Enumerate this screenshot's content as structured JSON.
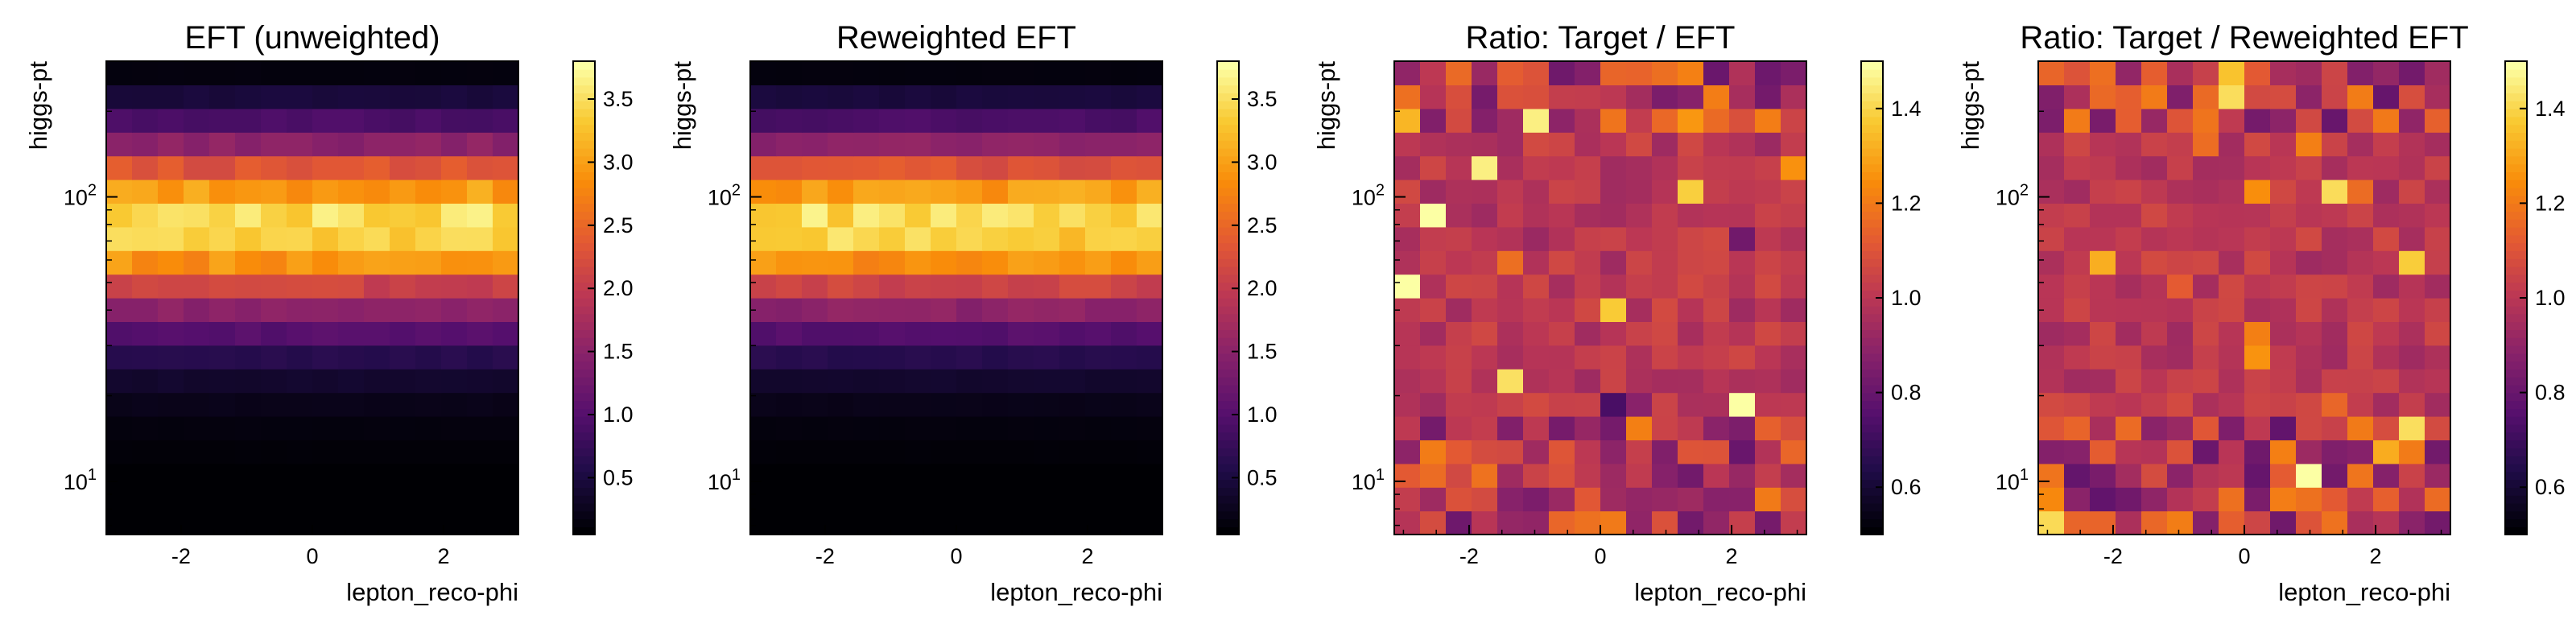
{
  "chart_data": [
    {
      "type": "heatmap",
      "title": "EFT (unweighted)",
      "xlabel": "lepton_reco-phi",
      "ylabel": "higgs-pt",
      "xlim": [
        -3.14,
        3.14
      ],
      "ylim": [
        6.5,
        300
      ],
      "yscale": "log",
      "x_ticks": [
        "-2",
        "0",
        "2"
      ],
      "y_ticks": [
        "10^2",
        "10^1"
      ],
      "colormap": "inferno",
      "colorbar": {
        "range": [
          0.05,
          3.8
        ],
        "ticks": [
          "0.5",
          "1.0",
          "1.5",
          "2.0",
          "2.5",
          "3.0",
          "3.5"
        ]
      },
      "grid": {
        "nx": 16,
        "ny": 20
      },
      "profile": [
        0.05,
        0.05,
        0.05,
        0.08,
        0.12,
        0.2,
        0.35,
        0.6,
        1.0,
        1.5,
        2.1,
        2.9,
        3.4,
        3.5,
        3.0,
        2.3,
        1.5,
        0.9,
        0.45,
        0.12
      ],
      "noise": 0.06
    },
    {
      "type": "heatmap",
      "title": "Reweighted EFT",
      "xlabel": "lepton_reco-phi",
      "ylabel": "higgs-pt",
      "xlim": [
        -3.14,
        3.14
      ],
      "ylim": [
        6.5,
        300
      ],
      "yscale": "log",
      "x_ticks": [
        "-2",
        "0",
        "2"
      ],
      "y_ticks": [
        "10^2",
        "10^1"
      ],
      "colormap": "inferno",
      "colorbar": {
        "range": [
          0.05,
          3.8
        ],
        "ticks": [
          "0.5",
          "1.0",
          "1.5",
          "2.0",
          "2.5",
          "3.0",
          "3.5"
        ]
      },
      "grid": {
        "nx": 16,
        "ny": 20
      },
      "profile": [
        0.05,
        0.05,
        0.05,
        0.08,
        0.12,
        0.2,
        0.35,
        0.6,
        1.0,
        1.5,
        2.1,
        2.9,
        3.4,
        3.5,
        3.0,
        2.3,
        1.5,
        0.9,
        0.45,
        0.12
      ],
      "noise": 0.06
    },
    {
      "type": "heatmap",
      "title": "Ratio: Target / EFT",
      "xlabel": "lepton_reco-phi",
      "ylabel": "higgs-pt",
      "xlim": [
        -3.14,
        3.14
      ],
      "ylim": [
        6.5,
        300
      ],
      "yscale": "log",
      "x_ticks": [
        "-2",
        "0",
        "2"
      ],
      "y_ticks": [
        "10^2",
        "10^1"
      ],
      "colormap": "inferno",
      "colorbar": {
        "range": [
          0.5,
          1.5
        ],
        "ticks": [
          "0.6",
          "0.8",
          "1.0",
          "1.2",
          "1.4"
        ]
      },
      "grid": {
        "nx": 16,
        "ny": 20
      },
      "center": 1.0,
      "spread_top_bottom": 0.22,
      "spread_middle": 0.07
    },
    {
      "type": "heatmap",
      "title": "Ratio: Target / Reweighted EFT",
      "xlabel": "lepton_reco-phi",
      "ylabel": "higgs-pt",
      "xlim": [
        -3.14,
        3.14
      ],
      "ylim": [
        6.5,
        300
      ],
      "yscale": "log",
      "x_ticks": [
        "-2",
        "0",
        "2"
      ],
      "y_ticks": [
        "10^2",
        "10^1"
      ],
      "colormap": "inferno",
      "colorbar": {
        "range": [
          0.5,
          1.5
        ],
        "ticks": [
          "0.6",
          "0.8",
          "1.0",
          "1.2",
          "1.4"
        ]
      },
      "grid": {
        "nx": 16,
        "ny": 20
      },
      "center": 1.0,
      "spread_top_bottom": 0.22,
      "spread_middle": 0.07
    }
  ]
}
